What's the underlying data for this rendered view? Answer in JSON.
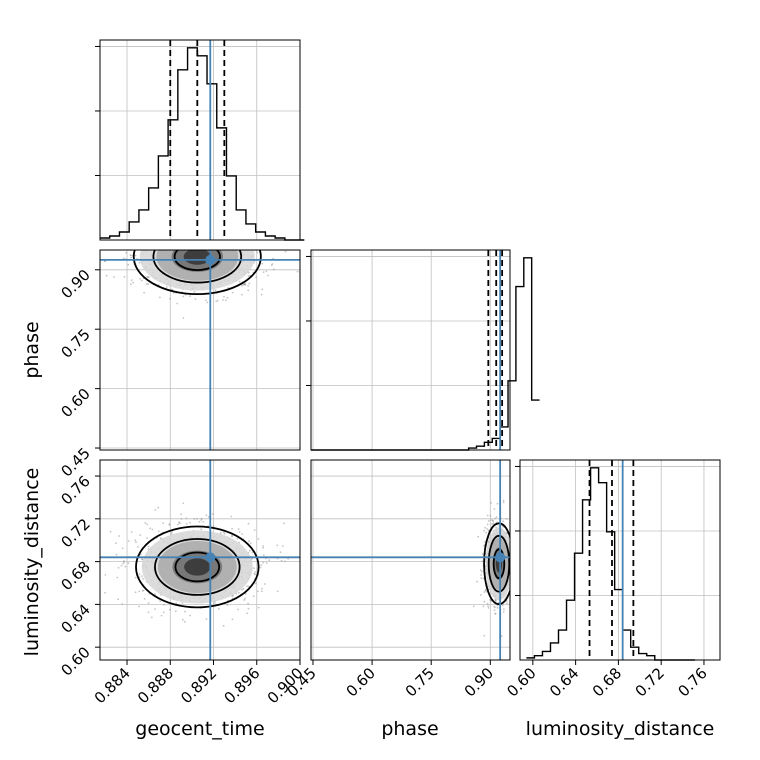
{
  "chart_data": {
    "type": "corner",
    "parameters": [
      "geocent_time",
      "phase",
      "luminosity_distance"
    ],
    "truths": {
      "geocent_time": 0.8917,
      "phase": 0.925,
      "luminosity_distance": 0.684
    },
    "colors": {
      "truth": "#4682b4",
      "hist": "#000000",
      "grid": "#c0c0c0",
      "points": "#8c8c8c"
    },
    "histograms": [
      {
        "parameter": "geocent_time",
        "xlim": [
          0.8815,
          0.9
        ]
      },
      {
        "parameter": "phase",
        "xlim": [
          0.445,
          0.95
        ]
      },
      {
        "parameter": "luminosity_distance",
        "xlim": [
          0.588,
          0.775
        ]
      }
    ],
    "geocent_time": {
      "xlim": [
        0.8815,
        0.9
      ],
      "ticks": [
        0.884,
        0.888,
        0.892,
        0.896,
        0.9
      ],
      "tick_labels": [
        "0.884",
        "0.888",
        "0.892",
        "0.896",
        "0.900"
      ],
      "quantiles": [
        0.888,
        0.8905,
        0.893
      ],
      "hist": {
        "bin_start": 0.8815,
        "bin_width": 0.0009,
        "counts": [
          1,
          2,
          4,
          9,
          15,
          26,
          42,
          60,
          85,
          96,
          92,
          78,
          56,
          32,
          15,
          8,
          4,
          2,
          1,
          0,
          0
        ]
      }
    },
    "phase": {
      "lim": [
        0.445,
        0.95
      ],
      "ticks": [
        0.45,
        0.6,
        0.75,
        0.9
      ],
      "tick_labels": [
        "0.45",
        "0.60",
        "0.75",
        "0.90"
      ],
      "quantiles": [
        0.895,
        0.915,
        0.93
      ],
      "hist": {
        "bin_start": 0.445,
        "bin_width": 0.02,
        "counts": [
          0,
          0,
          0,
          0,
          0,
          0,
          0,
          0,
          0,
          0,
          0,
          0,
          0,
          0,
          0,
          0,
          0,
          0,
          0,
          0,
          1,
          2,
          4,
          6,
          12,
          36,
          85,
          100,
          26
        ]
      }
    },
    "luminosity_distance": {
      "lim": [
        0.588,
        0.775
      ],
      "ticks": [
        0.6,
        0.64,
        0.68,
        0.72,
        0.76
      ],
      "tick_labels": [
        "0.60",
        "0.64",
        "0.68",
        "0.72",
        "0.76"
      ],
      "quantiles": [
        0.653,
        0.674,
        0.694
      ],
      "hist": {
        "bin_start": 0.594,
        "bin_width": 0.0075,
        "counts": [
          1,
          2,
          4,
          8,
          14,
          28,
          50,
          75,
          90,
          83,
          60,
          33,
          14,
          6,
          3,
          2,
          0,
          0,
          0,
          0,
          0
        ]
      }
    },
    "density_2d": [
      {
        "x": "geocent_time",
        "y": "phase",
        "center": [
          0.8905,
          0.933
        ],
        "spread": [
          0.0028,
          0.045
        ]
      },
      {
        "x": "geocent_time",
        "y": "luminosity_distance",
        "center": [
          0.8905,
          0.675
        ],
        "spread": [
          0.0027,
          0.018
        ]
      },
      {
        "x": "phase",
        "y": "luminosity_distance",
        "center": [
          0.922,
          0.678
        ],
        "spread": [
          0.018,
          0.018
        ]
      }
    ],
    "axis_labels": {
      "geocent_time": "geocent_time",
      "phase": "phase",
      "luminosity_distance": "luminosity_distance"
    }
  }
}
